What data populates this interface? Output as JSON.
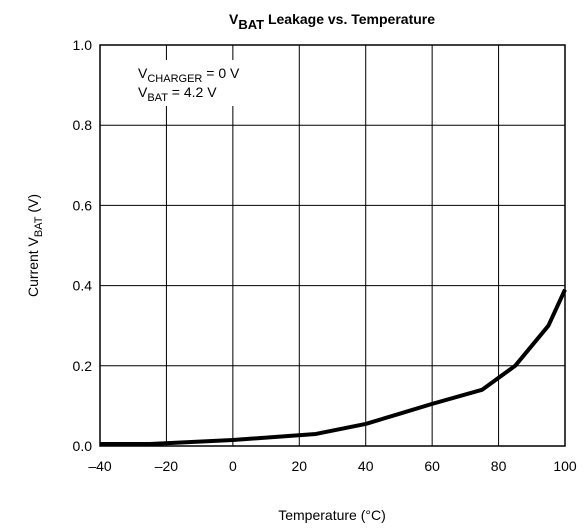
{
  "chart_data": {
    "type": "line",
    "title": [
      "V",
      "BAT",
      " Leakage vs. Temperature"
    ],
    "xlabel": "Temperature (°C)",
    "ylabel": [
      "Current V",
      "BAT",
      " (V)"
    ],
    "annotations": [
      [
        "V",
        "CHARGER",
        " = 0 V"
      ],
      [
        "V",
        "BAT",
        " = 4.2 V"
      ]
    ],
    "x": [
      -40,
      -25,
      0,
      25,
      40,
      50,
      60,
      75,
      85,
      95,
      100
    ],
    "series": [
      {
        "color": "#000000",
        "values": [
          0.005,
          0.005,
          0.015,
          0.03,
          0.055,
          0.08,
          0.105,
          0.14,
          0.2,
          0.3,
          0.39
        ]
      }
    ],
    "xlim": [
      -40,
      100
    ],
    "xticks": [
      {
        "value": -40,
        "label": "–40"
      },
      {
        "value": -20,
        "label": "–20"
      },
      0,
      20,
      40,
      60,
      80,
      100
    ],
    "ylim": [
      0,
      1
    ],
    "yticks": [
      {
        "value": 0,
        "label": "0.0"
      },
      0.2,
      0.4,
      0.6,
      0.8,
      {
        "value": 1,
        "label": "1.0"
      }
    ],
    "grid": true
  }
}
